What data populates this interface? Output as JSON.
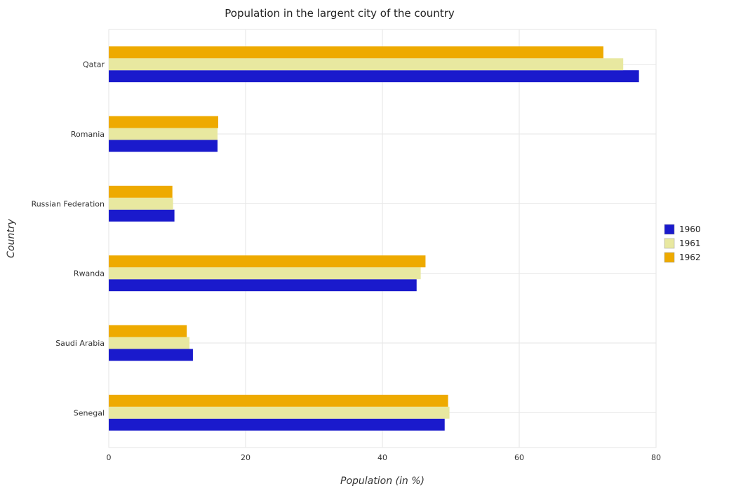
{
  "chart_data": {
    "type": "bar",
    "orientation": "horizontal",
    "title": "Population in the largent city of the country",
    "xlabel": "Population (in %)",
    "ylabel": "Country",
    "xlim": [
      0,
      80
    ],
    "xticks": [
      0,
      20,
      40,
      60,
      80
    ],
    "grid": true,
    "legend_position": "right",
    "categories": [
      "Qatar",
      "Romania",
      "Russian Federation",
      "Rwanda",
      "Saudi Arabia",
      "Senegal"
    ],
    "series": [
      {
        "name": "1960",
        "color": "#1a1acc",
        "values": [
          77.5,
          15.9,
          9.6,
          45.0,
          12.3,
          49.1
        ]
      },
      {
        "name": "1961",
        "color": "#e8e8a0",
        "values": [
          75.2,
          15.9,
          9.4,
          45.6,
          11.8,
          49.8
        ]
      },
      {
        "name": "1962",
        "color": "#eeaa00",
        "values": [
          72.3,
          16.0,
          9.3,
          46.3,
          11.4,
          49.6
        ]
      }
    ]
  }
}
